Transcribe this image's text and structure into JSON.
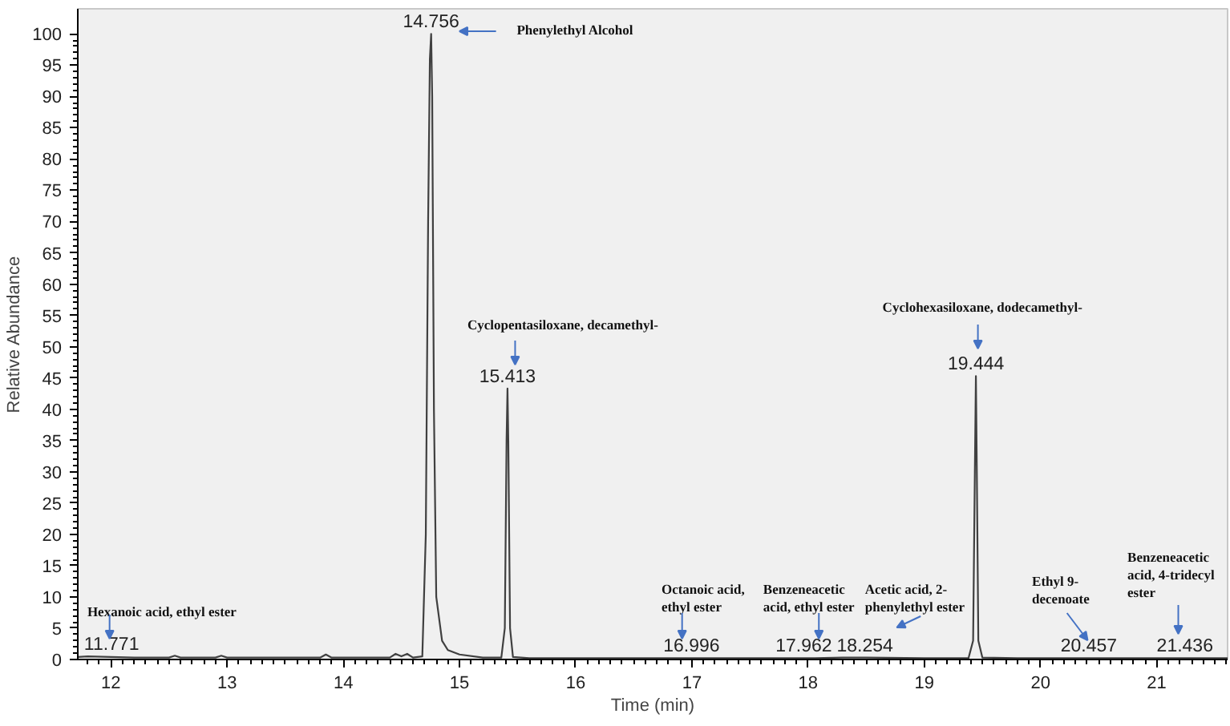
{
  "chart_data": {
    "type": "line",
    "xlabel": "Time (min)",
    "ylabel": "Relative Abundance",
    "x": [
      11.715,
      11.8,
      12.0,
      12.2,
      12.5,
      12.55,
      12.6,
      12.9,
      12.95,
      13.0,
      13.8,
      13.85,
      13.9,
      14.4,
      14.45,
      14.5,
      14.55,
      14.6,
      14.68,
      14.71,
      14.73,
      14.745,
      14.756,
      14.765,
      14.78,
      14.8,
      14.85,
      14.9,
      15.0,
      15.2,
      15.36,
      15.39,
      15.405,
      15.413,
      15.42,
      15.435,
      15.46,
      15.6,
      16.0,
      16.6,
      17.0,
      17.5,
      18.0,
      18.3,
      18.5,
      19.0,
      19.38,
      19.42,
      19.435,
      19.444,
      19.452,
      19.465,
      19.5,
      19.8,
      20.5,
      21.0,
      21.61
    ],
    "series": [
      {
        "color": "#404040",
        "values": [
          0.4,
          0.5,
          0.4,
          0.3,
          0.3,
          0.6,
          0.3,
          0.3,
          0.6,
          0.3,
          0.3,
          0.8,
          0.3,
          0.3,
          0.9,
          0.5,
          0.9,
          0.3,
          0.5,
          20,
          70,
          96,
          100,
          90,
          40,
          10,
          3,
          1.5,
          0.8,
          0.3,
          0.3,
          5,
          35,
          43.3,
          35,
          5,
          0.4,
          0.2,
          0.2,
          0.2,
          0.2,
          0.2,
          0.2,
          0.3,
          0.3,
          0.2,
          0.2,
          3,
          30,
          45.3,
          30,
          3,
          0.3,
          0.2,
          0.2,
          0.2,
          0.2
        ]
      }
    ],
    "xlim": [
      11.715,
      21.61
    ],
    "ylim": [
      0,
      104
    ],
    "xticks": [
      12,
      13,
      14,
      15,
      16,
      17,
      18,
      19,
      20,
      21
    ],
    "yticks": [
      0,
      5,
      10,
      15,
      20,
      25,
      30,
      35,
      40,
      45,
      50,
      55,
      60,
      65,
      70,
      75,
      80,
      85,
      90,
      95,
      100
    ],
    "grid": false,
    "marker": "none",
    "line_style": "solid",
    "annotations": [
      {
        "text": "11.771",
        "x": 11.771,
        "y": 0.5
      },
      {
        "text": "14.756",
        "x": 14.756,
        "y": 100
      },
      {
        "text": "15.413",
        "x": 15.413,
        "y": 43.3
      },
      {
        "text": "16.996",
        "x": 16.996,
        "y": 0.2
      },
      {
        "text": "17.962",
        "x": 17.962,
        "y": 0.2
      },
      {
        "text": "18.254",
        "x": 18.254,
        "y": 0.3
      },
      {
        "text": "19.444",
        "x": 19.444,
        "y": 45.3
      },
      {
        "text": "20.457",
        "x": 20.457,
        "y": 0.2
      },
      {
        "text": "21.436",
        "x": 21.436,
        "y": 0.2
      },
      "Hexanoic acid, ethyl ester",
      "Phenylethyl Alcohol",
      "Cyclopentasiloxane, decamethyl-",
      "Octanoic acid,\nethyl ester",
      "Benzeneacetic\nacid, ethyl ester",
      "Acetic acid, 2-\nphenylethyl ester",
      "Cyclohexasiloxane,  dodecamethyl-",
      "Ethyl 9-\ndecenoate",
      "Benzeneacetic\nacid, 4-tridecyl\nester"
    ]
  }
}
